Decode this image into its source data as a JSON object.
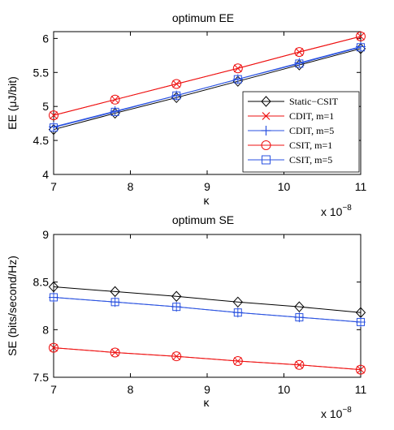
{
  "colors": {
    "black": "#000000",
    "red": "#ee1111",
    "blue": "#2a52e0"
  },
  "chart_data": [
    {
      "type": "line",
      "title": "optimum EE",
      "xlabel": "κ",
      "ylabel": "EE (μJ/bit)",
      "x_multiplier_label": "x 10",
      "x_multiplier_exp": "−8",
      "xlim": [
        7,
        11
      ],
      "ylim": [
        4,
        6.1
      ],
      "xticks": [
        7,
        8,
        9,
        10,
        11
      ],
      "xtick_labels": [
        "7",
        "8",
        "9",
        "10",
        "11"
      ],
      "yticks": [
        4,
        4.5,
        5,
        5.5,
        6
      ],
      "ytick_labels": [
        "4",
        "4.5",
        "5",
        "5.5",
        "6"
      ],
      "grid": false,
      "legend_position": "lower-right",
      "x": [
        7,
        7.8,
        8.6,
        9.4,
        10.2,
        11
      ],
      "series": [
        {
          "name": "Static−CSIT",
          "color": "black",
          "marker": "diamond",
          "values": [
            4.66,
            4.9,
            5.13,
            5.37,
            5.61,
            5.85
          ]
        },
        {
          "name": "CDIT, m=1",
          "color": "red",
          "marker": "x",
          "values": [
            4.87,
            5.1,
            5.33,
            5.56,
            5.8,
            6.03
          ]
        },
        {
          "name": "CDIT, m=5",
          "color": "blue",
          "marker": "plus",
          "values": [
            4.7,
            4.93,
            5.16,
            5.4,
            5.64,
            5.88
          ]
        },
        {
          "name": "CSIT, m=1",
          "color": "red",
          "marker": "circle",
          "values": [
            4.87,
            5.1,
            5.33,
            5.56,
            5.8,
            6.03
          ]
        },
        {
          "name": "CSIT, m=5",
          "color": "blue",
          "marker": "square",
          "values": [
            4.69,
            4.92,
            5.16,
            5.4,
            5.63,
            5.87
          ]
        }
      ]
    },
    {
      "type": "line",
      "title": "optimum SE",
      "xlabel": "κ",
      "ylabel": "SE (bits/second/Hz)",
      "x_multiplier_label": "x 10",
      "x_multiplier_exp": "−8",
      "xlim": [
        7,
        11
      ],
      "ylim": [
        7.5,
        9
      ],
      "xticks": [
        7,
        8,
        9,
        10,
        11
      ],
      "xtick_labels": [
        "7",
        "8",
        "9",
        "10",
        "11"
      ],
      "yticks": [
        7.5,
        8,
        8.5,
        9
      ],
      "ytick_labels": [
        "7.5",
        "8",
        "8.5",
        "9"
      ],
      "grid": false,
      "x": [
        7,
        7.8,
        8.6,
        9.4,
        10.2,
        11
      ],
      "series": [
        {
          "color": "black",
          "marker": "diamond",
          "values": [
            8.45,
            8.4,
            8.35,
            8.29,
            8.24,
            8.18
          ]
        },
        {
          "color": "red",
          "marker": "x",
          "values": [
            7.81,
            7.76,
            7.72,
            7.67,
            7.63,
            7.58
          ]
        },
        {
          "color": "blue",
          "marker": "plus",
          "values": [
            8.34,
            8.29,
            8.24,
            8.18,
            8.13,
            8.08
          ]
        },
        {
          "color": "red",
          "marker": "circle",
          "values": [
            7.81,
            7.76,
            7.72,
            7.67,
            7.63,
            7.58
          ]
        },
        {
          "color": "blue",
          "marker": "square",
          "values": [
            8.34,
            8.29,
            8.24,
            8.18,
            8.13,
            8.08
          ]
        }
      ]
    }
  ]
}
